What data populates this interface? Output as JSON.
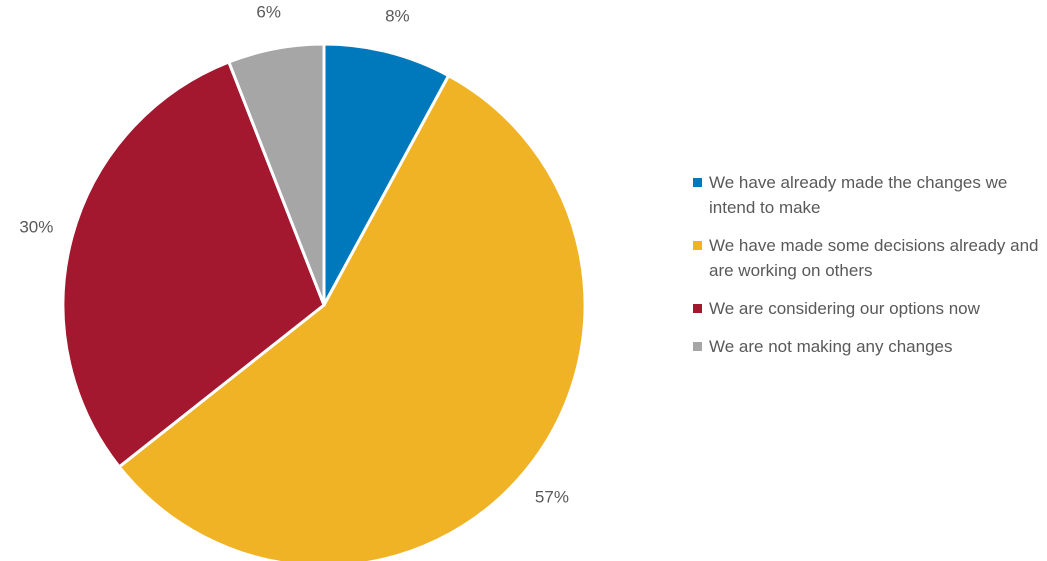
{
  "chart_data": {
    "type": "pie",
    "labels": [
      "We have already made the changes we intend to make",
      "We have made some decisions already and are working on others",
      "We are considering our options now",
      "We are not making any changes"
    ],
    "values": [
      8,
      57,
      30,
      6
    ],
    "value_labels": [
      "8%",
      "57%",
      "30%",
      "6%"
    ],
    "colors": [
      "#0079bc",
      "#efb325",
      "#a3172f",
      "#a6a6a6"
    ],
    "start_angle": "12 o'clock",
    "direction": "clockwise",
    "legend_position": "right",
    "title": ""
  }
}
